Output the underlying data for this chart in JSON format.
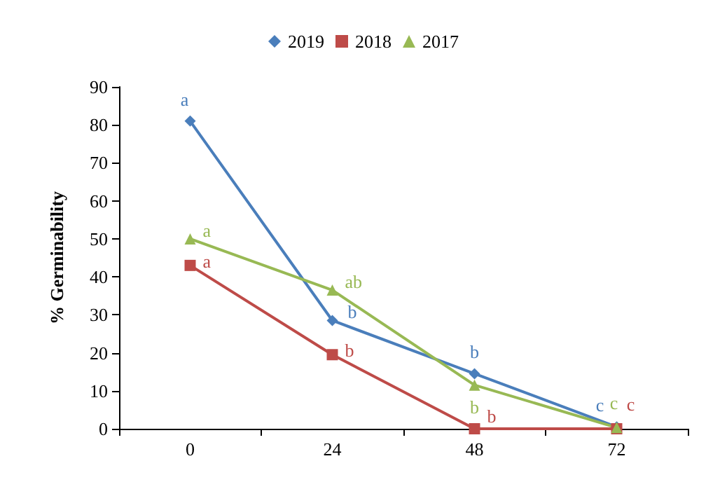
{
  "chart_data": {
    "type": "line",
    "ylabel": "% Germinability",
    "categories": [
      "0",
      "24",
      "48",
      "72"
    ],
    "series": [
      {
        "name": "2019",
        "color": "#4a7ebb",
        "marker": "diamond",
        "values": [
          81,
          28.5,
          14.5,
          0.5
        ],
        "value_labels": [
          "a",
          "b",
          "b",
          "c"
        ]
      },
      {
        "name": "2018",
        "color": "#be4b48",
        "marker": "square",
        "values": [
          43,
          19.5,
          0,
          0
        ],
        "value_labels": [
          "a",
          "b",
          "b",
          "c"
        ]
      },
      {
        "name": "2017",
        "color": "#98b954",
        "marker": "triangle",
        "values": [
          50,
          36.5,
          11.5,
          0.3
        ],
        "value_labels": [
          "a",
          "ab",
          "b",
          "c"
        ]
      }
    ],
    "ylim": [
      0,
      90
    ],
    "yticks": [
      0,
      10,
      20,
      30,
      40,
      50,
      60,
      70,
      80,
      90
    ],
    "grid": false,
    "legend": "top"
  }
}
